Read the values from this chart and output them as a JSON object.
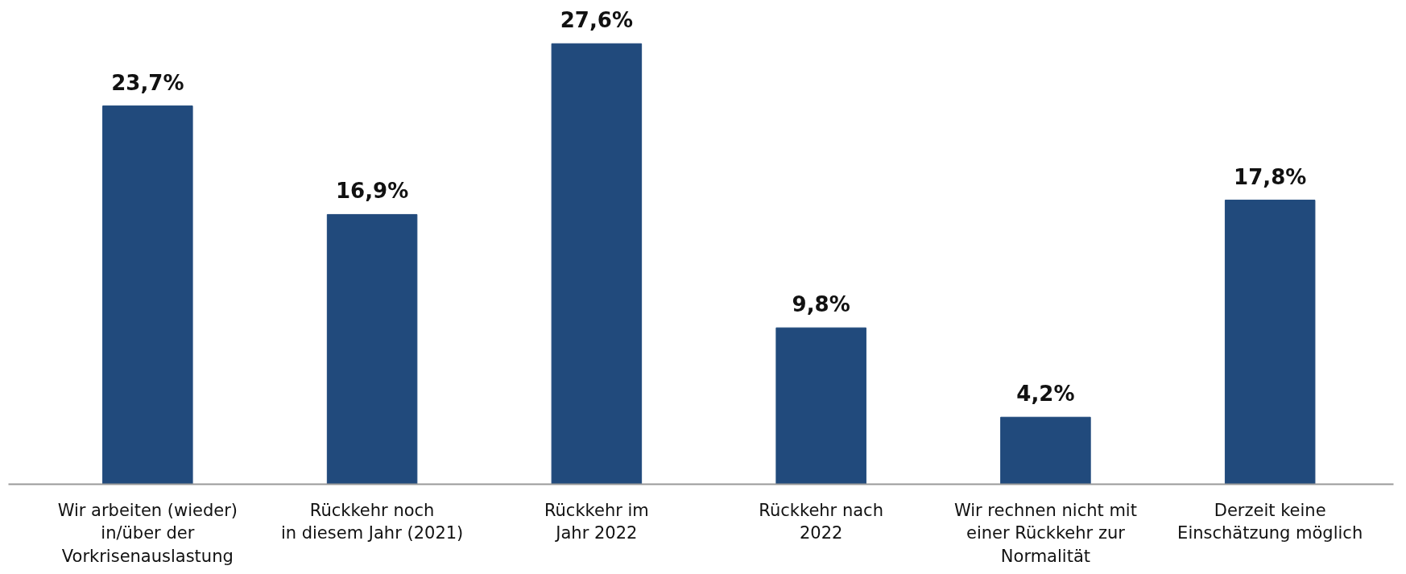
{
  "chart_data": {
    "type": "bar",
    "categories": [
      "Wir arbeiten (wieder)\nin/über der\nVorkrisenauslastung",
      "Rückkehr noch\nin diesem Jahr (2021)",
      "Rückkehr im\nJahr 2022",
      "Rückkehr nach\n2022",
      "Wir rechnen nicht mit\neiner Rückkehr zur\nNormalität",
      "Derzeit keine\nEinschätzung möglich"
    ],
    "values": [
      23.7,
      16.9,
      27.6,
      9.8,
      4.2,
      17.8
    ],
    "value_labels": [
      "23,7%",
      "16,9%",
      "27,6%",
      "9,8%",
      "4,2%",
      "17,8%"
    ],
    "color": "#214a7c",
    "grid": false
  }
}
